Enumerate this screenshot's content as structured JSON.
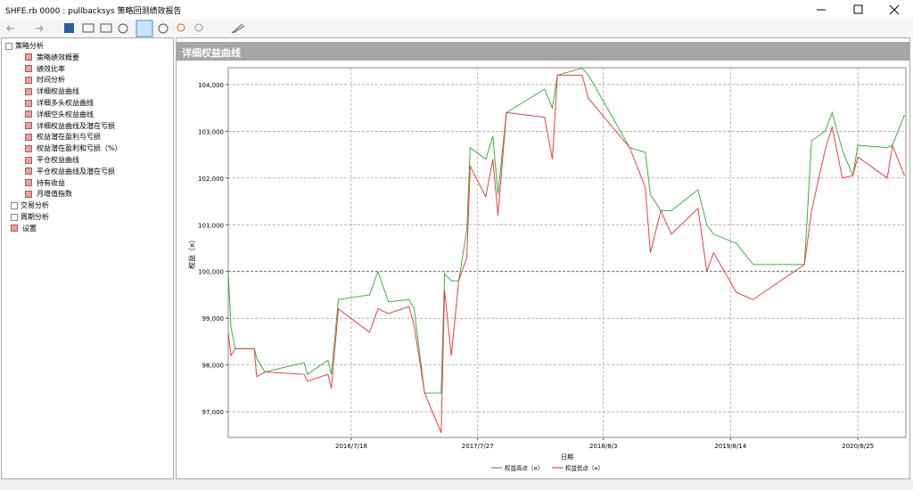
{
  "window": {
    "title": "SHFE.rb 0000 : pullbacksys 策略回测绩效报告"
  },
  "tree": [
    {
      "label": "策略分析",
      "children": [
        "策略绩效概要",
        "绩效比率",
        "时间分析",
        "详细权益曲线",
        "详细多头权益曲线",
        "详细空头权益曲线",
        "详细权益曲线及潜在亏损",
        "权益潜在盈利与亏损",
        "权益潜在盈利和亏损（%）",
        "平仓权益曲线",
        "平仓权益曲线及潜在亏损",
        "持有收益",
        "月增值指数"
      ]
    },
    {
      "label": "交易分析"
    },
    {
      "label": "周期分析"
    },
    {
      "label": "设置"
    }
  ],
  "panel": {
    "title": "详细权益曲线"
  },
  "chart_data": {
    "type": "line",
    "x_label": "日期",
    "y_label": "权益（¤）",
    "x": [
      "2015/7/20",
      "2015/7/28",
      "2015/8/10",
      "2015/10/5",
      "2015/10/12",
      "2015/11/5",
      "2016/3/1",
      "2016/3/10",
      "2016/5/10",
      "2016/5/20",
      "2016/6/10",
      "2016/9/10",
      "2016/10/5",
      "2016/11/5",
      "2017/1/5",
      "2017/1/20",
      "2017/2/20",
      "2017/4/10",
      "2017/4/20",
      "2017/5/10",
      "2017/6/1",
      "2017/6/25",
      "2017/7/5",
      "2017/8/20",
      "2017/9/10",
      "2017/9/25",
      "2017/10/20",
      "2018/2/10",
      "2018/3/5",
      "2018/3/20",
      "2018/6/1",
      "2018/6/20",
      "2018/10/20",
      "2018/12/5",
      "2018/12/20",
      "2019/1/20",
      "2019/2/20",
      "2019/5/10",
      "2019/6/5",
      "2019/6/25",
      "2019/9/1",
      "2019/10/20",
      "2020/3/20",
      "2020/4/10",
      "2020/5/20",
      "2020/6/10",
      "2020/7/10",
      "2020/8/10",
      "2020/8/25",
      "2020/11/20",
      "2020/12/5",
      "2021/1/10"
    ],
    "series": [
      {
        "name": "权益高点（¤）",
        "color": "#3cb043",
        "values": [
          100000,
          98800,
          98350,
          98350,
          98150,
          97850,
          98050,
          97800,
          98100,
          97800,
          99400,
          99500,
          100000,
          99350,
          99400,
          99200,
          97400,
          97400,
          99950,
          99800,
          99800,
          100900,
          102650,
          102400,
          102900,
          101650,
          103400,
          103900,
          103500,
          104200,
          104350,
          104200,
          102650,
          102550,
          101650,
          101300,
          101300,
          101750,
          101000,
          100800,
          100600,
          100150,
          100150,
          102800,
          103000,
          103400,
          102600,
          102050,
          102700,
          102650,
          102700,
          103350
        ]
      },
      {
        "name": "权益低点（¤）",
        "color": "#e84040",
        "values": [
          98700,
          98200,
          98350,
          98350,
          97750,
          97850,
          97800,
          97650,
          97800,
          97500,
          99200,
          98700,
          99200,
          99100,
          99250,
          98850,
          97400,
          96550,
          99600,
          98200,
          99800,
          100300,
          102250,
          101600,
          102400,
          101200,
          103400,
          103300,
          102400,
          104200,
          104200,
          103700,
          102650,
          101800,
          100400,
          101300,
          100800,
          101350,
          100000,
          100400,
          99550,
          99400,
          100150,
          101300,
          102600,
          103100,
          102000,
          102050,
          102450,
          102000,
          102700,
          102050
        ]
      }
    ],
    "xlim": [
      "2015/7/20",
      "2021/1/14"
    ],
    "xticks": [
      "2016/7/18",
      "2017/7/27",
      "2018/8/3",
      "2019/8/14",
      "2020/8/25"
    ],
    "ylim": [
      96450,
      104360
    ],
    "yticks": [
      {
        "value": 97000,
        "label": "97,000"
      },
      {
        "value": 98000,
        "label": "98,000"
      },
      {
        "value": 99000,
        "label": "99,000"
      },
      {
        "value": 100000,
        "label": "100,000"
      },
      {
        "value": 101000,
        "label": "101,000"
      },
      {
        "value": 102000,
        "label": "102,000"
      },
      {
        "value": 103000,
        "label": "103,000"
      },
      {
        "value": 104000,
        "label": "104,000"
      }
    ],
    "grid": true
  }
}
